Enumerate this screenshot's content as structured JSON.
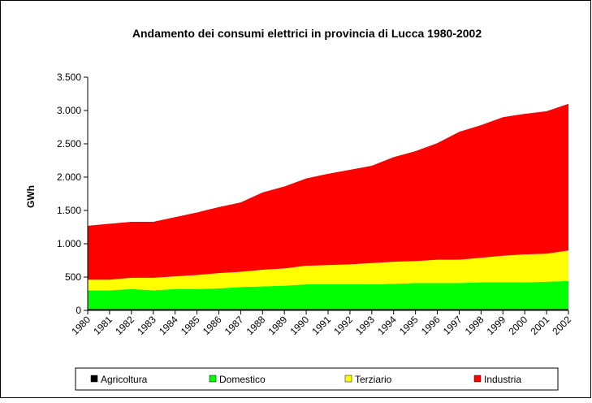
{
  "chart_data": {
    "type": "stacked_area",
    "title": "Andamento dei consumi elettrici in provincia di Lucca 1980-2002",
    "y_label": "GWh",
    "categories": [
      "1980",
      "1981",
      "1982",
      "1983",
      "1984",
      "1985",
      "1986",
      "1987",
      "1988",
      "1989",
      "1990",
      "1991",
      "1992",
      "1993",
      "1994",
      "1995",
      "1996",
      "1997",
      "1998",
      "1999",
      "2000",
      "2001",
      "2002"
    ],
    "series": [
      {
        "name": "Agricoltura",
        "color": "#000000",
        "values": [
          20,
          20,
          20,
          20,
          20,
          20,
          20,
          20,
          20,
          20,
          20,
          20,
          20,
          20,
          20,
          20,
          20,
          20,
          20,
          20,
          20,
          20,
          20
        ]
      },
      {
        "name": "Domestico",
        "color": "#00ff00",
        "values": [
          280,
          280,
          300,
          280,
          300,
          300,
          310,
          330,
          340,
          350,
          370,
          370,
          370,
          370,
          380,
          390,
          390,
          390,
          400,
          400,
          400,
          410,
          420
        ]
      },
      {
        "name": "Terziario",
        "color": "#ffff00",
        "values": [
          160,
          160,
          170,
          190,
          190,
          210,
          230,
          230,
          250,
          260,
          280,
          290,
          300,
          320,
          330,
          330,
          350,
          350,
          370,
          400,
          420,
          420,
          460
        ]
      },
      {
        "name": "Industria",
        "color": "#ff0000",
        "values": [
          810,
          840,
          840,
          840,
          890,
          940,
          990,
          1040,
          1160,
          1230,
          1310,
          1370,
          1420,
          1460,
          1570,
          1650,
          1750,
          1920,
          1990,
          2080,
          2110,
          2140,
          2200
        ]
      }
    ],
    "ylim": [
      0,
      3500
    ],
    "yticks": [
      0,
      500,
      {
        "value": 1000,
        "label": "1.000"
      },
      {
        "value": 1500,
        "label": "1.500"
      },
      {
        "value": 2000,
        "label": "2.000"
      },
      {
        "value": 2500,
        "label": "2.500"
      },
      {
        "value": 3000,
        "label": "3.000"
      },
      {
        "value": 3500,
        "label": "3.500"
      }
    ],
    "legend": "bottom"
  }
}
